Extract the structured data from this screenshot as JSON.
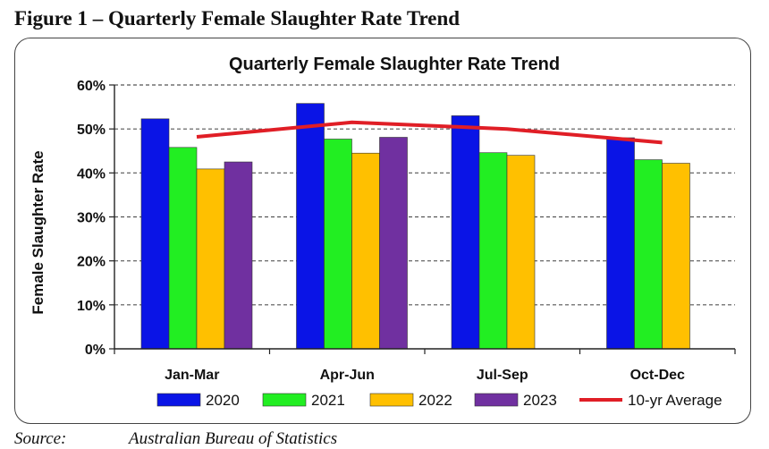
{
  "figure_caption": "Figure 1 – Quarterly Female Slaughter Rate Trend",
  "source": {
    "label": "Source:",
    "text": "Australian Bureau of Statistics"
  },
  "chart_data": {
    "type": "bar",
    "title": "Quarterly Female Slaughter Rate Trend",
    "ylabel": "Female Slaughter Rate",
    "xlabel": "",
    "ylim": [
      0,
      60
    ],
    "yticks": [
      0,
      10,
      20,
      30,
      40,
      50,
      60
    ],
    "ytick_labels": [
      "0%",
      "10%",
      "20%",
      "30%",
      "40%",
      "50%",
      "60%"
    ],
    "grid": true,
    "legend_position": "bottom",
    "categories": [
      "Jan-Mar",
      "Apr-Jun",
      "Jul-Sep",
      "Oct-Dec"
    ],
    "series": [
      {
        "name": "2020",
        "color": "#0a14e6",
        "values": [
          52.3,
          55.8,
          53.0,
          48.0
        ]
      },
      {
        "name": "2021",
        "color": "#22ee22",
        "values": [
          45.8,
          47.7,
          44.6,
          43.0
        ]
      },
      {
        "name": "2022",
        "color": "#ffc000",
        "values": [
          40.9,
          44.5,
          44.0,
          42.2
        ]
      },
      {
        "name": "2023",
        "color": "#7030a0",
        "values": [
          42.5,
          48.1,
          null,
          null
        ]
      }
    ],
    "line_series": {
      "name": "10-yr Average",
      "color": "#e01e26",
      "values": [
        48.2,
        51.5,
        50.0,
        46.9
      ]
    }
  }
}
